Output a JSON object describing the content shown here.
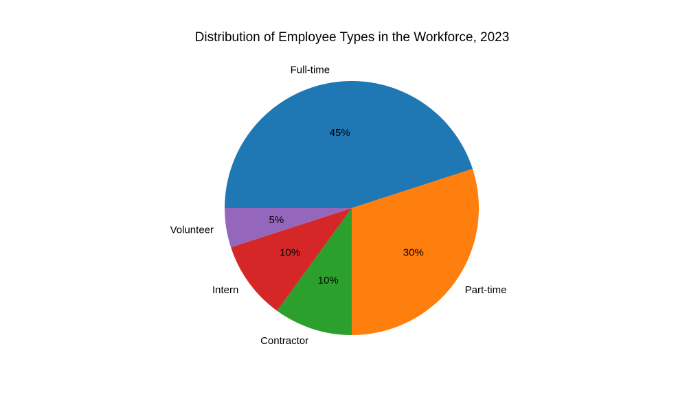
{
  "chart_data": {
    "type": "pie",
    "title": "Distribution of Employee Types in the Workforce, 2023",
    "slices": [
      {
        "label": "Full-time",
        "value": 45,
        "pct_label": "45%",
        "color": "#1f77b4"
      },
      {
        "label": "Part-time",
        "value": 30,
        "pct_label": "30%",
        "color": "#ff7f0e"
      },
      {
        "label": "Contractor",
        "value": 10,
        "pct_label": "10%",
        "color": "#2ca02c"
      },
      {
        "label": "Intern",
        "value": 10,
        "pct_label": "10%",
        "color": "#d62728"
      },
      {
        "label": "Volunteer",
        "value": 5,
        "pct_label": "5%",
        "color": "#9467bd"
      }
    ],
    "start_angle_deg": 180,
    "direction": "clockwise",
    "legend": "none"
  }
}
